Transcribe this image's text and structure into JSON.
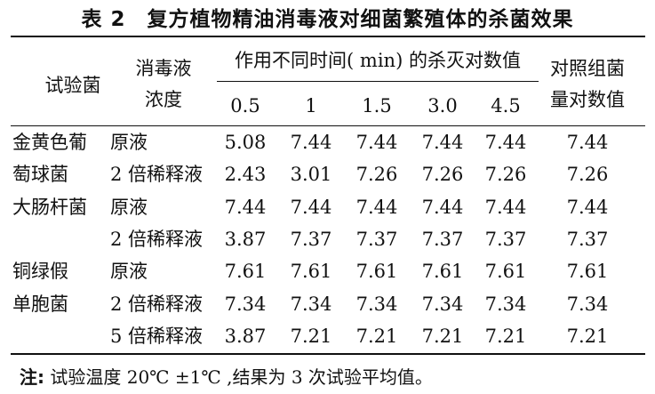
{
  "title": "表 2　复方植物精油消毒液对细菌繁殖体的杀菌效果",
  "header": {
    "organism": "试验菌",
    "concentration_line1": "消毒液",
    "concentration_line2": "浓度",
    "group": "作用不同时间( min) 的杀灭对数值",
    "control_line1": "对照组菌",
    "control_line2": "量对数值",
    "times": [
      "0.5",
      "1",
      "1.5",
      "3.0",
      "4.5"
    ]
  },
  "rows": [
    {
      "organism": "金黄色葡",
      "concentration": "原液",
      "values": [
        "5.08",
        "7.44",
        "7.44",
        "7.44",
        "7.44"
      ],
      "control": "7.44"
    },
    {
      "organism": "萄球菌",
      "concentration": "2 倍稀释液",
      "values": [
        "2.43",
        "3.01",
        "7.26",
        "7.26",
        "7.26"
      ],
      "control": "7.26"
    },
    {
      "organism": "大肠杆菌",
      "concentration": "原液",
      "values": [
        "7.44",
        "7.44",
        "7.44",
        "7.44",
        "7.44"
      ],
      "control": "7.44"
    },
    {
      "organism": "",
      "concentration": "2 倍稀释液",
      "values": [
        "3.87",
        "7.37",
        "7.37",
        "7.37",
        "7.37"
      ],
      "control": "7.37"
    },
    {
      "organism": "铜绿假",
      "concentration": "原液",
      "values": [
        "7.61",
        "7.61",
        "7.61",
        "7.61",
        "7.61"
      ],
      "control": "7.61"
    },
    {
      "organism": "单胞菌",
      "concentration": "2 倍稀释液",
      "values": [
        "7.34",
        "7.34",
        "7.34",
        "7.34",
        "7.34"
      ],
      "control": "7.34"
    },
    {
      "organism": "",
      "concentration": "5 倍稀释液",
      "values": [
        "3.87",
        "7.21",
        "7.21",
        "7.21",
        "7.21"
      ],
      "control": "7.21"
    }
  ],
  "note": {
    "label": "注:",
    "text": " 试验温度 20℃ ±1℃ ,结果为 3 次试验平均值。"
  }
}
